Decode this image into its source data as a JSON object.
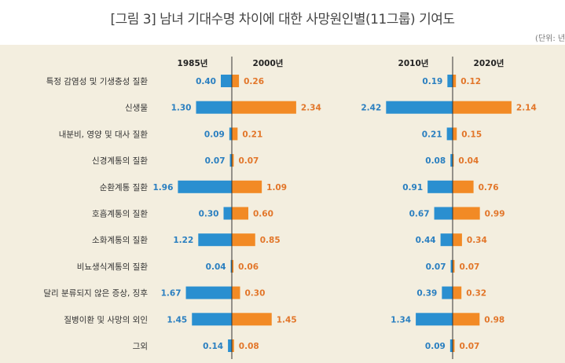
{
  "title": "[그림 3] 남녀 기대수명 차이에 대한 사망원인별(11그룹) 기여도",
  "unit": "(단위: 년)",
  "colors": {
    "left": "#2a8fd0",
    "right": "#f28a25",
    "axis": "#333333"
  },
  "chart_data": {
    "type": "bar",
    "orientation": "horizontal-butterfly",
    "categories": [
      "특정 감염성 및 기생충성 질환",
      "신생물",
      "내분비, 영양 및 대사 질환",
      "신경계통의 질환",
      "순환계통 질환",
      "호흡계통의 질환",
      "소화계통의 질환",
      "비뇨생식계통의 질환",
      "달리 분류되지 않은 증상, 징후",
      "질병이환 및 사망의 외인",
      "그외"
    ],
    "panels": [
      {
        "left_label": "1985년",
        "right_label": "2000년",
        "series": [
          {
            "name": "1985년",
            "values": [
              0.4,
              1.3,
              0.09,
              0.07,
              1.96,
              0.3,
              1.22,
              0.04,
              1.67,
              1.45,
              0.14
            ]
          },
          {
            "name": "2000년",
            "values": [
              0.26,
              2.34,
              0.21,
              0.07,
              1.09,
              0.6,
              0.85,
              0.06,
              0.3,
              1.45,
              0.08
            ]
          }
        ]
      },
      {
        "left_label": "2010년",
        "right_label": "2020년",
        "series": [
          {
            "name": "2010년",
            "values": [
              0.19,
              2.42,
              0.21,
              0.08,
              0.91,
              0.67,
              0.44,
              0.07,
              0.39,
              1.34,
              0.09
            ]
          },
          {
            "name": "2020년",
            "values": [
              0.12,
              2.14,
              0.15,
              0.04,
              0.76,
              0.99,
              0.34,
              0.07,
              0.32,
              0.98,
              0.07
            ]
          }
        ]
      }
    ]
  }
}
